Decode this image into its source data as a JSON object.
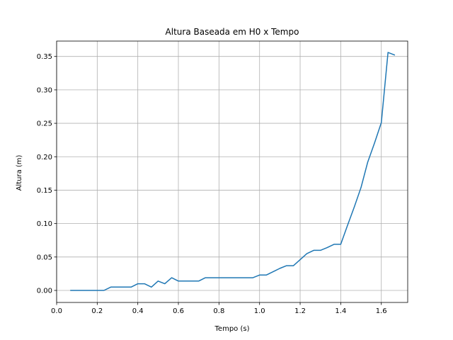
{
  "chart_data": {
    "type": "line",
    "title": "Altura Baseada em H0 x Tempo",
    "xlabel": "Tempo (s)",
    "ylabel": "Altura (m)",
    "xlim": [
      0.0,
      1.73
    ],
    "ylim": [
      -0.018,
      0.373
    ],
    "xticks": [
      0.0,
      0.2,
      0.4,
      0.6,
      0.8,
      1.0,
      1.2,
      1.4,
      1.6
    ],
    "xtick_labels": [
      "0.0",
      "0.2",
      "0.4",
      "0.6",
      "0.8",
      "1.0",
      "1.2",
      "1.4",
      "1.6"
    ],
    "yticks": [
      0.0,
      0.05,
      0.1,
      0.15,
      0.2,
      0.25,
      0.3,
      0.35
    ],
    "ytick_labels": [
      "0.00",
      "0.05",
      "0.10",
      "0.15",
      "0.20",
      "0.25",
      "0.30",
      "0.35"
    ],
    "grid": true,
    "series": [
      {
        "color": "#1f77b4",
        "x": [
          0.067,
          0.1,
          0.133,
          0.167,
          0.2,
          0.233,
          0.267,
          0.3,
          0.333,
          0.367,
          0.4,
          0.433,
          0.467,
          0.5,
          0.533,
          0.567,
          0.6,
          0.633,
          0.667,
          0.7,
          0.733,
          0.767,
          0.8,
          0.833,
          0.867,
          0.9,
          0.933,
          0.967,
          1.0,
          1.033,
          1.067,
          1.1,
          1.133,
          1.167,
          1.2,
          1.233,
          1.267,
          1.3,
          1.333,
          1.367,
          1.4,
          1.433,
          1.467,
          1.5,
          1.533,
          1.567,
          1.6,
          1.633,
          1.667
        ],
        "y": [
          0.0,
          0.0,
          0.0,
          0.0,
          0.0,
          0.0,
          0.005,
          0.005,
          0.005,
          0.005,
          0.01,
          0.01,
          0.005,
          0.014,
          0.01,
          0.019,
          0.014,
          0.014,
          0.014,
          0.014,
          0.019,
          0.019,
          0.019,
          0.019,
          0.019,
          0.019,
          0.019,
          0.019,
          0.023,
          0.023,
          0.028,
          0.033,
          0.037,
          0.037,
          0.046,
          0.055,
          0.06,
          0.06,
          0.064,
          0.069,
          0.069,
          0.097,
          0.125,
          0.154,
          0.192,
          0.221,
          0.251,
          0.356,
          0.352
        ]
      }
    ]
  }
}
